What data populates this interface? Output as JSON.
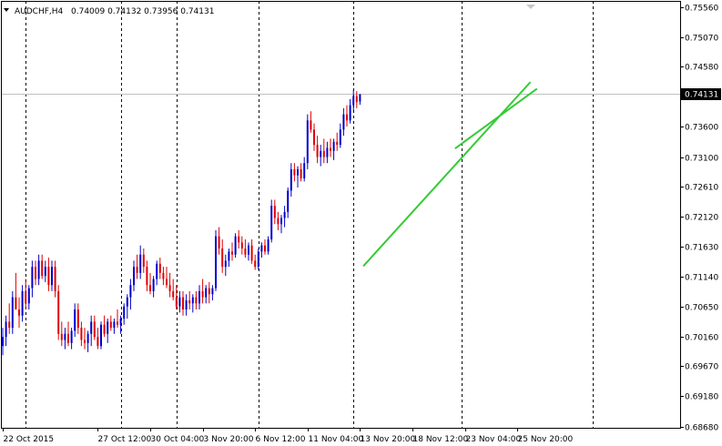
{
  "chart_data": {
    "type": "candlestick",
    "symbol_label": "AUDCHF,H4",
    "ohlc_label": "0.74009 0.74132 0.73956 0.74131",
    "current_price_label": "0.74131",
    "current_price": 0.74131,
    "ylim": [
      0.6866,
      0.7566
    ],
    "y_ticks": [
      "0.75560",
      "0.75070",
      "0.74580",
      "0.74090",
      "0.73600",
      "0.73100",
      "0.72610",
      "0.72120",
      "0.71630",
      "0.71140",
      "0.70650",
      "0.70160",
      "0.69670",
      "0.69180",
      "0.68680"
    ],
    "y_tick_values": [
      0.7556,
      0.7507,
      0.7458,
      0.7409,
      0.736,
      0.731,
      0.7261,
      0.7212,
      0.7163,
      0.7114,
      0.7065,
      0.7016,
      0.6967,
      0.6918,
      0.6868
    ],
    "x_ticks": [
      "22 Oct 2015",
      "27 Oct 12:00",
      "30 Oct 04:00",
      "3 Nov 20:00",
      "6 Nov 12:00",
      "11 Nov 04:00",
      "13 Nov 20:00",
      "18 Nov 12:00",
      "23 Nov 04:00",
      "25 Nov 20:00"
    ],
    "x_tick_bar_index": [
      0,
      29,
      45,
      61,
      77,
      93,
      109,
      125,
      141,
      157
    ],
    "period_separator_bar_index": [
      7,
      36,
      53,
      78,
      107,
      140,
      180
    ],
    "series": [
      {
        "type": "candles",
        "bars": [
          [
            0.7,
            0.703,
            0.6985,
            0.7015
          ],
          [
            0.7015,
            0.705,
            0.7,
            0.704
          ],
          [
            0.704,
            0.707,
            0.702,
            0.703
          ],
          [
            0.703,
            0.709,
            0.702,
            0.708
          ],
          [
            0.708,
            0.712,
            0.706,
            0.706
          ],
          [
            0.706,
            0.708,
            0.703,
            0.705
          ],
          [
            0.705,
            0.71,
            0.704,
            0.709
          ],
          [
            0.709,
            0.711,
            0.706,
            0.707
          ],
          [
            0.707,
            0.71,
            0.706,
            0.7095
          ],
          [
            0.7095,
            0.714,
            0.708,
            0.713
          ],
          [
            0.713,
            0.714,
            0.71,
            0.711
          ],
          [
            0.711,
            0.715,
            0.71,
            0.714
          ],
          [
            0.714,
            0.715,
            0.711,
            0.7115
          ],
          [
            0.7115,
            0.714,
            0.7105,
            0.713
          ],
          [
            0.713,
            0.7145,
            0.709,
            0.71
          ],
          [
            0.71,
            0.714,
            0.709,
            0.713
          ],
          [
            0.713,
            0.714,
            0.708,
            0.709
          ],
          [
            0.709,
            0.71,
            0.701,
            0.702
          ],
          [
            0.702,
            0.704,
            0.7,
            0.701
          ],
          [
            0.701,
            0.703,
            0.6995,
            0.702
          ],
          [
            0.702,
            0.704,
            0.7,
            0.7005
          ],
          [
            0.7005,
            0.703,
            0.6995,
            0.7025
          ],
          [
            0.7025,
            0.707,
            0.7015,
            0.706
          ],
          [
            0.706,
            0.707,
            0.702,
            0.703
          ],
          [
            0.703,
            0.704,
            0.7,
            0.701
          ],
          [
            0.701,
            0.703,
            0.6995,
            0.7005
          ],
          [
            0.7005,
            0.7025,
            0.699,
            0.702
          ],
          [
            0.702,
            0.705,
            0.7,
            0.704
          ],
          [
            0.704,
            0.705,
            0.701,
            0.7015
          ],
          [
            0.7015,
            0.703,
            0.6995,
            0.7
          ],
          [
            0.7,
            0.704,
            0.6995,
            0.7035
          ],
          [
            0.7035,
            0.705,
            0.7015,
            0.702
          ],
          [
            0.702,
            0.7045,
            0.7005,
            0.704
          ],
          [
            0.704,
            0.705,
            0.7025,
            0.703
          ],
          [
            0.703,
            0.7045,
            0.702,
            0.704
          ],
          [
            0.704,
            0.706,
            0.703,
            0.7035
          ],
          [
            0.7035,
            0.705,
            0.702,
            0.7045
          ],
          [
            0.7045,
            0.707,
            0.7035,
            0.7065
          ],
          [
            0.7065,
            0.7085,
            0.7045,
            0.708
          ],
          [
            0.708,
            0.711,
            0.706,
            0.71
          ],
          [
            0.71,
            0.714,
            0.709,
            0.713
          ],
          [
            0.713,
            0.715,
            0.711,
            0.712
          ],
          [
            0.712,
            0.7165,
            0.711,
            0.715
          ],
          [
            0.715,
            0.716,
            0.712,
            0.713
          ],
          [
            0.713,
            0.714,
            0.709,
            0.71
          ],
          [
            0.71,
            0.712,
            0.7085,
            0.709
          ],
          [
            0.709,
            0.7115,
            0.708,
            0.711
          ],
          [
            0.711,
            0.714,
            0.71,
            0.7135
          ],
          [
            0.7135,
            0.7145,
            0.711,
            0.712
          ],
          [
            0.712,
            0.713,
            0.71,
            0.711
          ],
          [
            0.711,
            0.713,
            0.7095,
            0.71
          ],
          [
            0.71,
            0.712,
            0.708,
            0.709
          ],
          [
            0.709,
            0.711,
            0.7075,
            0.708
          ],
          [
            0.708,
            0.71,
            0.706,
            0.7065
          ],
          [
            0.7065,
            0.709,
            0.7055,
            0.708
          ],
          [
            0.708,
            0.709,
            0.705,
            0.706
          ],
          [
            0.706,
            0.7085,
            0.705,
            0.7075
          ],
          [
            0.7075,
            0.709,
            0.706,
            0.707
          ],
          [
            0.707,
            0.7085,
            0.7055,
            0.708
          ],
          [
            0.708,
            0.709,
            0.706,
            0.707
          ],
          [
            0.707,
            0.71,
            0.706,
            0.709
          ],
          [
            0.709,
            0.711,
            0.707,
            0.708
          ],
          [
            0.708,
            0.71,
            0.707,
            0.7095
          ],
          [
            0.7095,
            0.7105,
            0.707,
            0.7085
          ],
          [
            0.7085,
            0.71,
            0.7075,
            0.7095
          ],
          [
            0.7095,
            0.719,
            0.709,
            0.718
          ],
          [
            0.718,
            0.7195,
            0.715,
            0.716
          ],
          [
            0.716,
            0.7175,
            0.712,
            0.713
          ],
          [
            0.713,
            0.715,
            0.7115,
            0.714
          ],
          [
            0.714,
            0.716,
            0.713,
            0.7155
          ],
          [
            0.7155,
            0.717,
            0.714,
            0.715
          ],
          [
            0.715,
            0.7185,
            0.7145,
            0.718
          ],
          [
            0.718,
            0.719,
            0.716,
            0.717
          ],
          [
            0.717,
            0.718,
            0.715,
            0.716
          ],
          [
            0.716,
            0.7175,
            0.7145,
            0.715
          ],
          [
            0.715,
            0.717,
            0.714,
            0.7165
          ],
          [
            0.7165,
            0.7175,
            0.7135,
            0.714
          ],
          [
            0.714,
            0.715,
            0.7125,
            0.713
          ],
          [
            0.713,
            0.716,
            0.7125,
            0.7155
          ],
          [
            0.7155,
            0.717,
            0.7145,
            0.7165
          ],
          [
            0.7165,
            0.7175,
            0.715,
            0.7155
          ],
          [
            0.7155,
            0.718,
            0.715,
            0.7175
          ],
          [
            0.7175,
            0.724,
            0.717,
            0.723
          ],
          [
            0.723,
            0.724,
            0.72,
            0.721
          ],
          [
            0.721,
            0.722,
            0.719,
            0.72
          ],
          [
            0.72,
            0.7215,
            0.7185,
            0.721
          ],
          [
            0.721,
            0.723,
            0.7195,
            0.722
          ],
          [
            0.722,
            0.726,
            0.721,
            0.7255
          ],
          [
            0.7255,
            0.73,
            0.7245,
            0.729
          ],
          [
            0.729,
            0.73,
            0.727,
            0.728
          ],
          [
            0.728,
            0.7295,
            0.726,
            0.729
          ],
          [
            0.729,
            0.73,
            0.727,
            0.7275
          ],
          [
            0.7275,
            0.731,
            0.727,
            0.73
          ],
          [
            0.73,
            0.738,
            0.729,
            0.737
          ],
          [
            0.737,
            0.7385,
            0.735,
            0.7355
          ],
          [
            0.7355,
            0.7365,
            0.732,
            0.733
          ],
          [
            0.733,
            0.7345,
            0.73,
            0.731
          ],
          [
            0.731,
            0.733,
            0.7295,
            0.732
          ],
          [
            0.732,
            0.734,
            0.73,
            0.731
          ],
          [
            0.731,
            0.7335,
            0.73,
            0.7325
          ],
          [
            0.7325,
            0.734,
            0.731,
            0.732
          ],
          [
            0.732,
            0.734,
            0.7305,
            0.7335
          ],
          [
            0.7335,
            0.735,
            0.732,
            0.733
          ],
          [
            0.733,
            0.7365,
            0.7325,
            0.7355
          ],
          [
            0.7355,
            0.739,
            0.7345,
            0.738
          ],
          [
            0.738,
            0.7395,
            0.736,
            0.737
          ],
          [
            0.737,
            0.7405,
            0.7365,
            0.7395
          ],
          [
            0.7395,
            0.742,
            0.7385,
            0.741
          ],
          [
            0.741,
            0.7418,
            0.739,
            0.74
          ],
          [
            0.74009,
            0.74132,
            0.73956,
            0.74131
          ]
        ]
      },
      {
        "type": "trendline",
        "points": [
          [
            110,
            0.7131
          ],
          [
            161,
            0.7433
          ]
        ]
      },
      {
        "type": "trendline",
        "points": [
          [
            138,
            0.7324
          ],
          [
            163,
            0.7422
          ]
        ]
      }
    ]
  }
}
